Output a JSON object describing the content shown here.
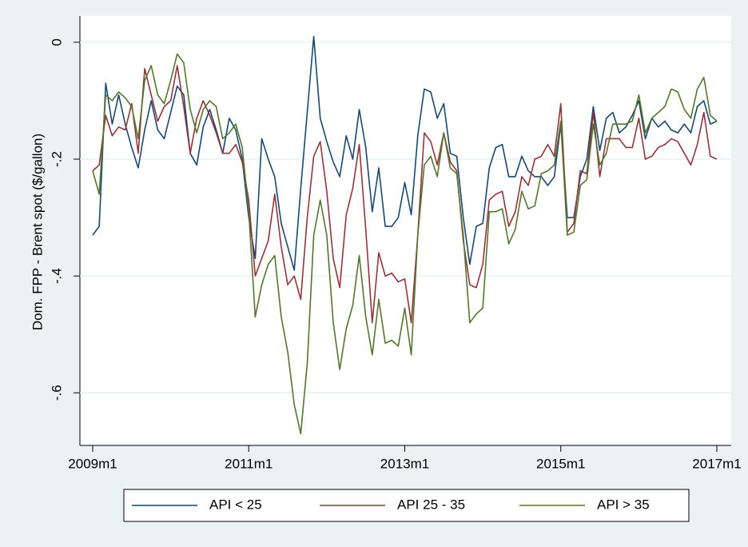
{
  "chart_data": {
    "type": "line",
    "ylabel": "Dom. FPP - Brent spot ($/gallon)",
    "x": [
      "2009m1",
      "2009m2",
      "2009m3",
      "2009m4",
      "2009m5",
      "2009m6",
      "2009m7",
      "2009m8",
      "2009m9",
      "2009m10",
      "2009m11",
      "2009m12",
      "2010m1",
      "2010m2",
      "2010m3",
      "2010m4",
      "2010m5",
      "2010m6",
      "2010m7",
      "2010m8",
      "2010m9",
      "2010m10",
      "2010m11",
      "2010m12",
      "2011m1",
      "2011m2",
      "2011m3",
      "2011m4",
      "2011m5",
      "2011m6",
      "2011m7",
      "2011m8",
      "2011m9",
      "2011m10",
      "2011m11",
      "2011m12",
      "2012m1",
      "2012m2",
      "2012m3",
      "2012m4",
      "2012m5",
      "2012m6",
      "2012m7",
      "2012m8",
      "2012m9",
      "2012m10",
      "2012m11",
      "2012m12",
      "2013m1",
      "2013m2",
      "2013m3",
      "2013m4",
      "2013m5",
      "2013m6",
      "2013m7",
      "2013m8",
      "2013m9",
      "2013m10",
      "2013m11",
      "2013m12",
      "2014m1",
      "2014m2",
      "2014m3",
      "2014m4",
      "2014m5",
      "2014m6",
      "2014m7",
      "2014m8",
      "2014m9",
      "2014m10",
      "2014m11",
      "2014m12",
      "2015m1",
      "2015m2",
      "2015m3",
      "2015m4",
      "2015m5",
      "2015m6",
      "2015m7",
      "2015m8",
      "2015m9",
      "2015m10",
      "2015m11",
      "2015m12",
      "2016m1",
      "2016m2",
      "2016m3",
      "2016m4",
      "2016m5",
      "2016m6",
      "2016m7",
      "2016m8",
      "2016m9",
      "2016m10",
      "2016m11",
      "2016m12",
      "2017m1"
    ],
    "xticks": [
      "2009m1",
      "2011m1",
      "2013m1",
      "2015m1",
      "2017m1"
    ],
    "ylim": [
      -0.69,
      0.045
    ],
    "yticks": [
      0,
      {
        "value": -0.2,
        "label": "-.2"
      },
      {
        "value": -0.4,
        "label": "-.4"
      },
      {
        "value": -0.6,
        "label": "-.6"
      }
    ],
    "grid": true,
    "legend": "bottom",
    "series": [
      {
        "name": "API < 25",
        "color": "#1a476f",
        "values": [
          -0.33,
          -0.315,
          -0.07,
          -0.14,
          -0.09,
          -0.14,
          -0.18,
          -0.215,
          -0.15,
          -0.1,
          -0.15,
          -0.165,
          -0.12,
          -0.075,
          -0.09,
          -0.19,
          -0.21,
          -0.145,
          -0.115,
          -0.15,
          -0.19,
          -0.13,
          -0.15,
          -0.2,
          -0.3,
          -0.37,
          -0.165,
          -0.2,
          -0.23,
          -0.31,
          -0.35,
          -0.39,
          -0.25,
          -0.12,
          0.01,
          -0.13,
          -0.17,
          -0.205,
          -0.23,
          -0.16,
          -0.2,
          -0.115,
          -0.18,
          -0.29,
          -0.215,
          -0.315,
          -0.315,
          -0.3,
          -0.24,
          -0.295,
          -0.16,
          -0.08,
          -0.085,
          -0.13,
          -0.105,
          -0.19,
          -0.195,
          -0.3,
          -0.38,
          -0.315,
          -0.31,
          -0.215,
          -0.18,
          -0.175,
          -0.23,
          -0.23,
          -0.195,
          -0.22,
          -0.23,
          -0.23,
          -0.245,
          -0.23,
          -0.14,
          -0.3,
          -0.3,
          -0.23,
          -0.2,
          -0.11,
          -0.185,
          -0.13,
          -0.12,
          -0.155,
          -0.145,
          -0.125,
          -0.1,
          -0.165,
          -0.13,
          -0.145,
          -0.135,
          -0.15,
          -0.155,
          -0.14,
          -0.155,
          -0.11,
          -0.1,
          -0.14,
          -0.135
        ]
      },
      {
        "name": "API 25 - 35",
        "color": "#90353b",
        "values": [
          -0.22,
          -0.21,
          -0.125,
          -0.16,
          -0.145,
          -0.15,
          -0.105,
          -0.19,
          -0.045,
          -0.09,
          -0.135,
          -0.11,
          -0.1,
          -0.04,
          -0.11,
          -0.19,
          -0.13,
          -0.1,
          -0.125,
          -0.155,
          -0.19,
          -0.19,
          -0.175,
          -0.205,
          -0.27,
          -0.4,
          -0.37,
          -0.34,
          -0.26,
          -0.35,
          -0.415,
          -0.4,
          -0.44,
          -0.3,
          -0.195,
          -0.17,
          -0.255,
          -0.37,
          -0.42,
          -0.295,
          -0.25,
          -0.175,
          -0.32,
          -0.48,
          -0.36,
          -0.4,
          -0.395,
          -0.41,
          -0.405,
          -0.48,
          -0.33,
          -0.155,
          -0.17,
          -0.21,
          -0.155,
          -0.205,
          -0.22,
          -0.34,
          -0.415,
          -0.42,
          -0.38,
          -0.27,
          -0.26,
          -0.255,
          -0.315,
          -0.29,
          -0.23,
          -0.245,
          -0.2,
          -0.195,
          -0.175,
          -0.195,
          -0.105,
          -0.325,
          -0.31,
          -0.22,
          -0.225,
          -0.12,
          -0.23,
          -0.165,
          -0.165,
          -0.165,
          -0.18,
          -0.18,
          -0.13,
          -0.2,
          -0.195,
          -0.18,
          -0.175,
          -0.165,
          -0.17,
          -0.19,
          -0.21,
          -0.175,
          -0.12,
          -0.195,
          -0.2
        ]
      },
      {
        "name": "API > 35",
        "color": "#55752f",
        "values": [
          -0.22,
          -0.26,
          -0.09,
          -0.1,
          -0.085,
          -0.095,
          -0.11,
          -0.165,
          -0.065,
          -0.04,
          -0.09,
          -0.105,
          -0.065,
          -0.02,
          -0.035,
          -0.115,
          -0.155,
          -0.115,
          -0.1,
          -0.11,
          -0.165,
          -0.155,
          -0.14,
          -0.18,
          -0.29,
          -0.47,
          -0.415,
          -0.38,
          -0.365,
          -0.47,
          -0.53,
          -0.62,
          -0.67,
          -0.55,
          -0.33,
          -0.27,
          -0.33,
          -0.48,
          -0.56,
          -0.49,
          -0.45,
          -0.365,
          -0.47,
          -0.535,
          -0.44,
          -0.515,
          -0.51,
          -0.52,
          -0.455,
          -0.535,
          -0.33,
          -0.21,
          -0.195,
          -0.23,
          -0.155,
          -0.215,
          -0.225,
          -0.33,
          -0.48,
          -0.465,
          -0.455,
          -0.29,
          -0.29,
          -0.285,
          -0.345,
          -0.32,
          -0.255,
          -0.285,
          -0.28,
          -0.225,
          -0.22,
          -0.21,
          -0.135,
          -0.33,
          -0.325,
          -0.245,
          -0.235,
          -0.14,
          -0.21,
          -0.19,
          -0.14,
          -0.14,
          -0.14,
          -0.135,
          -0.09,
          -0.155,
          -0.13,
          -0.12,
          -0.11,
          -0.08,
          -0.085,
          -0.115,
          -0.13,
          -0.08,
          -0.06,
          -0.125,
          -0.135
        ]
      }
    ]
  }
}
